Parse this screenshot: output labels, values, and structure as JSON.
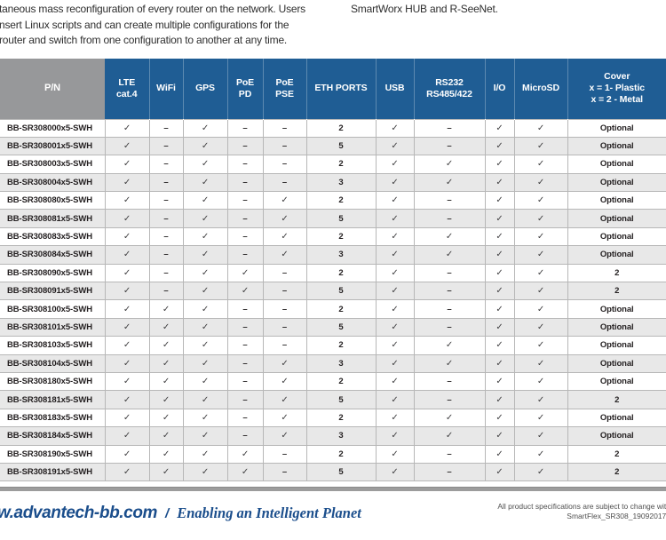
{
  "intro": {
    "left_lines": [
      "taneous mass reconfiguration of every router on the network. Users",
      "nsert Linux scripts and can create multiple configurations for the",
      "router and switch from one configuration to another at any time."
    ],
    "right_line": "SmartWorx HUB and R-SeeNet."
  },
  "table": {
    "columns": [
      {
        "key": "pn",
        "label": "P/N"
      },
      {
        "key": "lte",
        "label": "LTE\ncat.4"
      },
      {
        "key": "wifi",
        "label": "WiFi"
      },
      {
        "key": "gps",
        "label": "GPS"
      },
      {
        "key": "poe-pd",
        "label": "PoE\nPD"
      },
      {
        "key": "poe-pse",
        "label": "PoE\nPSE"
      },
      {
        "key": "eth-ports",
        "label": "ETH PORTS"
      },
      {
        "key": "usb",
        "label": "USB"
      },
      {
        "key": "rs232",
        "label": "RS232\nRS485/422"
      },
      {
        "key": "io",
        "label": "I/O"
      },
      {
        "key": "microsd",
        "label": "MicroSD"
      },
      {
        "key": "cover",
        "label": "Cover\nx = 1- Plastic\nx = 2 - Metal"
      }
    ],
    "rows": [
      {
        "pn": "BB-SR308000x5-SWH",
        "cells": [
          "✓",
          "–",
          "✓",
          "–",
          "–",
          "2",
          "✓",
          "–",
          "✓",
          "✓",
          "Optional"
        ]
      },
      {
        "pn": "BB-SR308001x5-SWH",
        "cells": [
          "✓",
          "–",
          "✓",
          "–",
          "–",
          "5",
          "✓",
          "–",
          "✓",
          "✓",
          "Optional"
        ]
      },
      {
        "pn": "BB-SR308003x5-SWH",
        "cells": [
          "✓",
          "–",
          "✓",
          "–",
          "–",
          "2",
          "✓",
          "✓",
          "✓",
          "✓",
          "Optional"
        ]
      },
      {
        "pn": "BB-SR308004x5-SWH",
        "cells": [
          "✓",
          "–",
          "✓",
          "–",
          "–",
          "3",
          "✓",
          "✓",
          "✓",
          "✓",
          "Optional"
        ]
      },
      {
        "pn": "BB-SR308080x5-SWH",
        "cells": [
          "✓",
          "–",
          "✓",
          "–",
          "✓",
          "2",
          "✓",
          "–",
          "✓",
          "✓",
          "Optional"
        ]
      },
      {
        "pn": "BB-SR308081x5-SWH",
        "cells": [
          "✓",
          "–",
          "✓",
          "–",
          "✓",
          "5",
          "✓",
          "–",
          "✓",
          "✓",
          "Optional"
        ]
      },
      {
        "pn": "BB-SR308083x5-SWH",
        "cells": [
          "✓",
          "–",
          "✓",
          "–",
          "✓",
          "2",
          "✓",
          "✓",
          "✓",
          "✓",
          "Optional"
        ]
      },
      {
        "pn": "BB-SR308084x5-SWH",
        "cells": [
          "✓",
          "–",
          "✓",
          "–",
          "✓",
          "3",
          "✓",
          "✓",
          "✓",
          "✓",
          "Optional"
        ]
      },
      {
        "pn": "BB-SR308090x5-SWH",
        "cells": [
          "✓",
          "–",
          "✓",
          "✓",
          "–",
          "2",
          "✓",
          "–",
          "✓",
          "✓",
          "2"
        ]
      },
      {
        "pn": "BB-SR308091x5-SWH",
        "cells": [
          "✓",
          "–",
          "✓",
          "✓",
          "–",
          "5",
          "✓",
          "–",
          "✓",
          "✓",
          "2"
        ]
      },
      {
        "pn": "BB-SR308100x5-SWH",
        "cells": [
          "✓",
          "✓",
          "✓",
          "–",
          "–",
          "2",
          "✓",
          "–",
          "✓",
          "✓",
          "Optional"
        ]
      },
      {
        "pn": "BB-SR308101x5-SWH",
        "cells": [
          "✓",
          "✓",
          "✓",
          "–",
          "–",
          "5",
          "✓",
          "–",
          "✓",
          "✓",
          "Optional"
        ]
      },
      {
        "pn": "BB-SR308103x5-SWH",
        "cells": [
          "✓",
          "✓",
          "✓",
          "–",
          "–",
          "2",
          "✓",
          "✓",
          "✓",
          "✓",
          "Optional"
        ]
      },
      {
        "pn": "BB-SR308104x5-SWH",
        "cells": [
          "✓",
          "✓",
          "✓",
          "–",
          "✓",
          "3",
          "✓",
          "✓",
          "✓",
          "✓",
          "Optional"
        ]
      },
      {
        "pn": "BB-SR308180x5-SWH",
        "cells": [
          "✓",
          "✓",
          "✓",
          "–",
          "✓",
          "2",
          "✓",
          "–",
          "✓",
          "✓",
          "Optional"
        ]
      },
      {
        "pn": "BB-SR308181x5-SWH",
        "cells": [
          "✓",
          "✓",
          "✓",
          "–",
          "✓",
          "5",
          "✓",
          "–",
          "✓",
          "✓",
          "2"
        ]
      },
      {
        "pn": "BB-SR308183x5-SWH",
        "cells": [
          "✓",
          "✓",
          "✓",
          "–",
          "✓",
          "2",
          "✓",
          "✓",
          "✓",
          "✓",
          "Optional"
        ]
      },
      {
        "pn": "BB-SR308184x5-SWH",
        "cells": [
          "✓",
          "✓",
          "✓",
          "–",
          "✓",
          "3",
          "✓",
          "✓",
          "✓",
          "✓",
          "Optional"
        ]
      },
      {
        "pn": "BB-SR308190x5-SWH",
        "cells": [
          "✓",
          "✓",
          "✓",
          "✓",
          "–",
          "2",
          "✓",
          "–",
          "✓",
          "✓",
          "2"
        ]
      },
      {
        "pn": "BB-SR308191x5-SWH",
        "cells": [
          "✓",
          "✓",
          "✓",
          "✓",
          "–",
          "5",
          "✓",
          "–",
          "✓",
          "✓",
          "2"
        ]
      }
    ]
  },
  "footer": {
    "brand": "w.advantech-bb.com",
    "slash": "/",
    "slogan": "Enabling an Intelligent Planet",
    "note_line1": "All product specifications are subject to change with",
    "note_line2": "SmartFlex_SR308_19092017d"
  },
  "colors": {
    "header_blue": "#1F5D94",
    "pn_gray": "#97989A",
    "row_alt": "#E8E8E8",
    "border": "#B7B7B7",
    "bar_gray": "#9C9C9C",
    "footer_blue": "#1B4E8C"
  }
}
